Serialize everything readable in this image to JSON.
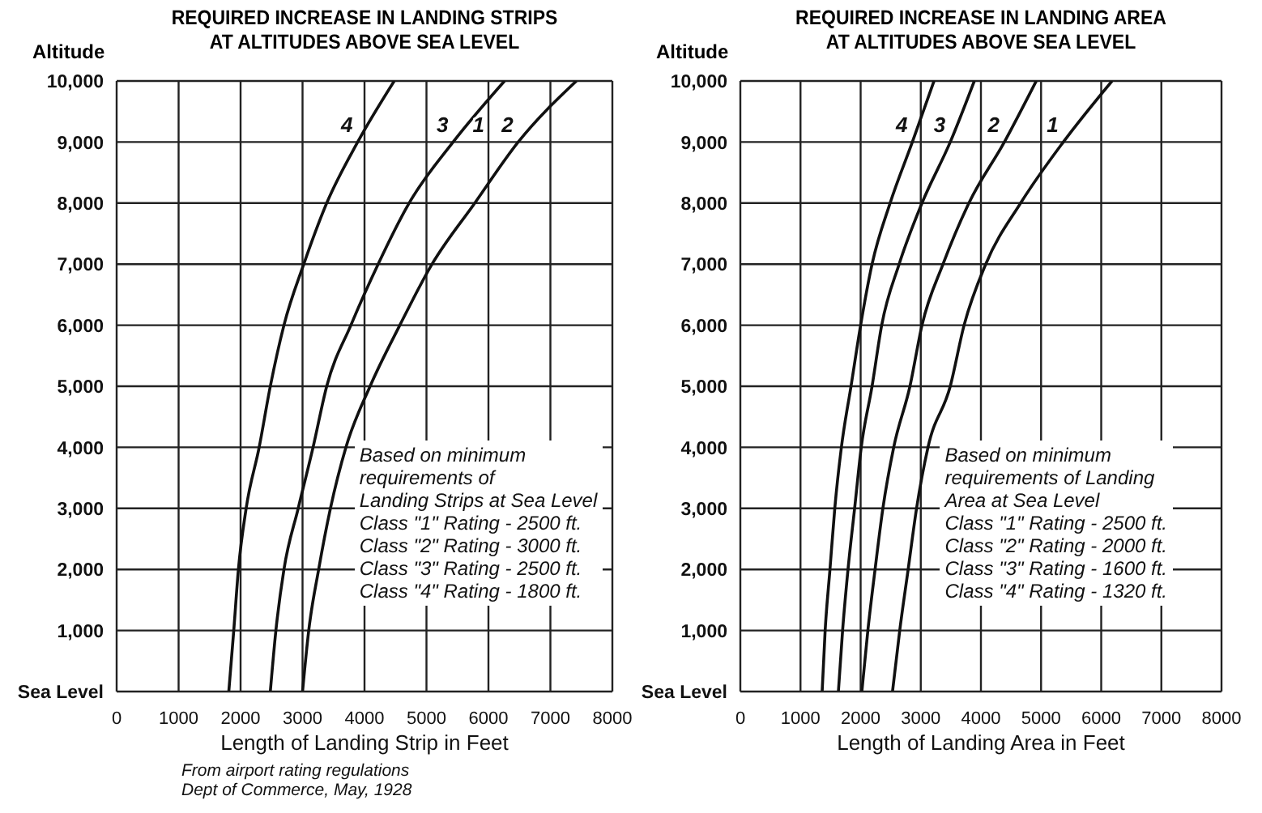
{
  "chart_data": [
    {
      "type": "line",
      "title": "REQUIRED INCREASE IN LANDING STRIPS\nAT ALTITUDES ABOVE SEA LEVEL",
      "xlabel": "Length of Landing Strip in Feet",
      "ylabel": "Altitude",
      "xlim": [
        0,
        8000
      ],
      "xticks": [
        0,
        1000,
        2000,
        3000,
        4000,
        5000,
        6000,
        7000,
        8000
      ],
      "ylim": [
        0,
        10000
      ],
      "yticks": [
        {
          "value": 0,
          "label": "Sea Level"
        },
        {
          "value": 1000,
          "label": "1,000"
        },
        {
          "value": 2000,
          "label": "2,000"
        },
        {
          "value": 3000,
          "label": "3,000"
        },
        {
          "value": 4000,
          "label": "4,000"
        },
        {
          "value": 5000,
          "label": "5,000"
        },
        {
          "value": 6000,
          "label": "6,000"
        },
        {
          "value": 7000,
          "label": "7,000"
        },
        {
          "value": 8000,
          "label": "8,000"
        },
        {
          "value": 9000,
          "label": "9,000"
        },
        {
          "value": 10000,
          "label": "10,000"
        }
      ],
      "grid": true,
      "series": [
        {
          "name": "4",
          "color": "#111111",
          "x": [
            1810,
            1890,
            1965,
            2090,
            2300,
            2480,
            2700,
            3020,
            3390,
            3890,
            4480
          ],
          "values": [
            0,
            1000,
            2000,
            3000,
            4000,
            5000,
            6000,
            7000,
            8000,
            9000,
            10000
          ]
        },
        {
          "name": "3",
          "color": "#111111",
          "x": [
            2480,
            2570,
            2700,
            2930,
            3170,
            3390,
            3780,
            4220,
            4720,
            5430,
            6260
          ],
          "values": [
            0,
            1000,
            2000,
            3000,
            4000,
            5000,
            6000,
            7000,
            8000,
            9000,
            10000
          ]
        },
        {
          "name": "2",
          "color": "#111111",
          "x": [
            3000,
            3100,
            3260,
            3450,
            3700,
            4090,
            4570,
            5090,
            5780,
            6480,
            7420
          ],
          "values": [
            0,
            1000,
            2000,
            3000,
            4000,
            5000,
            6000,
            7000,
            8000,
            9000,
            10000
          ]
        }
      ],
      "annotations": [
        {
          "text": "1",
          "x": 5430,
          "y": 9000
        },
        "Based on minimum\nrequirements of\nLanding Strips at Sea Level\nClass \"1\" Rating - 2500 ft.\nClass \"2\" Rating - 3000 ft.\nClass \"3\" Rating - 2500 ft.\nClass \"4\" Rating - 1800 ft.",
        "From airport rating regulations\nDept of Commerce, May, 1928"
      ]
    },
    {
      "type": "line",
      "title": "REQUIRED INCREASE IN LANDING AREA\nAT ALTITUDES ABOVE SEA LEVEL",
      "xlabel": "Length of Landing Area in Feet",
      "ylabel": "Altitude",
      "xlim": [
        0,
        8000
      ],
      "xticks": [
        0,
        1000,
        2000,
        3000,
        4000,
        5000,
        6000,
        7000,
        8000
      ],
      "ylim": [
        0,
        10000
      ],
      "yticks": [
        {
          "value": 0,
          "label": "Sea Level"
        },
        {
          "value": 1000,
          "label": "1,000"
        },
        {
          "value": 2000,
          "label": "2,000"
        },
        {
          "value": 3000,
          "label": "3,000"
        },
        {
          "value": 4000,
          "label": "4,000"
        },
        {
          "value": 5000,
          "label": "5,000"
        },
        {
          "value": 6000,
          "label": "6,000"
        },
        {
          "value": 7000,
          "label": "7,000"
        },
        {
          "value": 8000,
          "label": "8,000"
        },
        {
          "value": 9000,
          "label": "9,000"
        },
        {
          "value": 10000,
          "label": "10,000"
        }
      ],
      "grid": true,
      "series": [
        {
          "name": "4",
          "color": "#111111",
          "x": [
            1360,
            1410,
            1490,
            1570,
            1680,
            1840,
            2000,
            2190,
            2490,
            2860,
            3220
          ],
          "values": [
            0,
            1000,
            2000,
            3000,
            4000,
            5000,
            6000,
            7000,
            8000,
            9000,
            10000
          ]
        },
        {
          "name": "3",
          "color": "#111111",
          "x": [
            1630,
            1700,
            1790,
            1900,
            2010,
            2190,
            2350,
            2640,
            3020,
            3490,
            3890
          ],
          "values": [
            0,
            1000,
            2000,
            3000,
            4000,
            5000,
            6000,
            7000,
            8000,
            9000,
            10000
          ]
        },
        {
          "name": "2",
          "color": "#111111",
          "x": [
            2020,
            2120,
            2240,
            2370,
            2550,
            2820,
            3020,
            3370,
            3800,
            4390,
            4920
          ],
          "values": [
            0,
            1000,
            2000,
            3000,
            4000,
            5000,
            6000,
            7000,
            8000,
            9000,
            10000
          ]
        },
        {
          "name": "1",
          "color": "#111111",
          "x": [
            2530,
            2650,
            2790,
            2930,
            3120,
            3490,
            3720,
            4080,
            4660,
            5370,
            6180
          ],
          "values": [
            0,
            1000,
            2000,
            3000,
            4000,
            5000,
            6000,
            7000,
            8000,
            9000,
            10000
          ]
        }
      ],
      "annotations": [
        "Based on minimum\nrequirements of Landing\nArea at Sea Level\nClass \"1\" Rating - 2500 ft.\nClass \"2\" Rating - 2000 ft.\nClass \"3\" Rating - 1600 ft.\nClass \"4\" Rating - 1320 ft."
      ]
    }
  ]
}
